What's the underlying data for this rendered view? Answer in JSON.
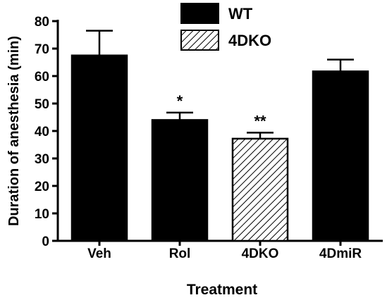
{
  "chart_data": {
    "type": "bar",
    "title": "",
    "xlabel": "Treatment",
    "ylabel": "Duration of anesthesia (min)",
    "ylim": [
      0,
      80
    ],
    "yticks": [
      0,
      10,
      20,
      30,
      40,
      50,
      60,
      70,
      80
    ],
    "grid": false,
    "legend_position": "top-center",
    "legend": [
      {
        "label": "WT",
        "pattern": "solid",
        "color": "#000000"
      },
      {
        "label": "4DKO",
        "pattern": "hatched",
        "color": "#000000"
      }
    ],
    "categories": [
      "Veh",
      "Rol",
      "4DKO",
      "4DmiR"
    ],
    "values": [
      67.5,
      44.0,
      37.2,
      61.7
    ],
    "errors": [
      9.0,
      2.7,
      2.2,
      4.3
    ],
    "groups": [
      "WT",
      "WT",
      "4DKO",
      "WT"
    ],
    "annotations": [
      "",
      "*",
      "**",
      ""
    ]
  }
}
